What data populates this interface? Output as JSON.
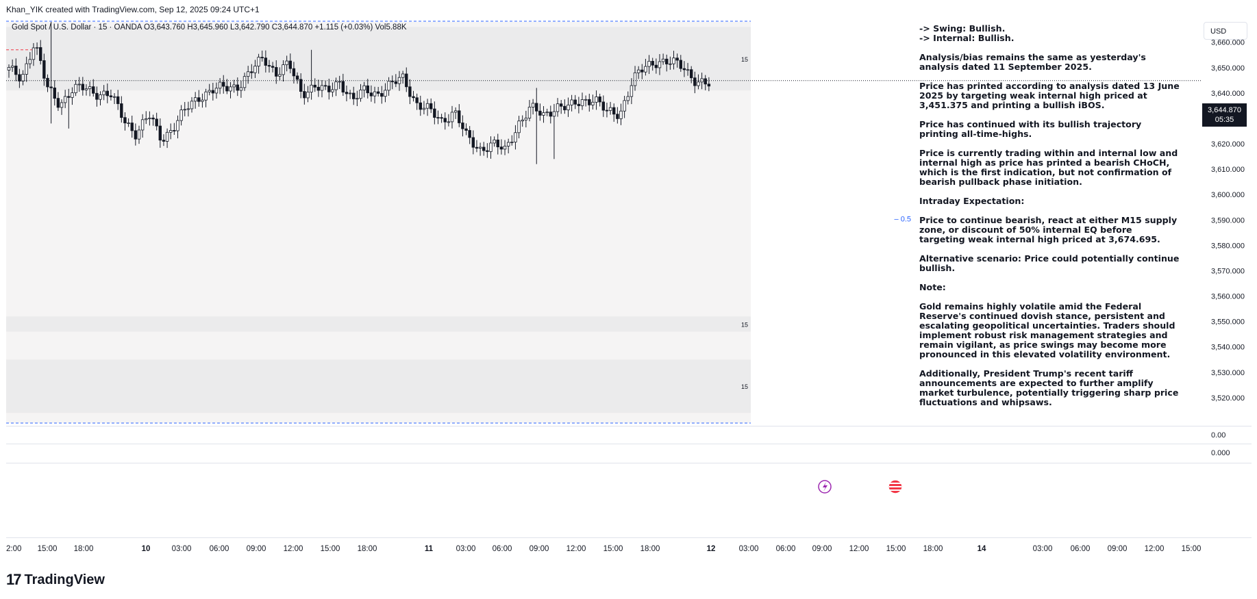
{
  "header": {
    "attribution": "Khan_YIK created with TradingView.com, Sep 12, 2025 09:24 UTC+1"
  },
  "legend": {
    "symbol": "Gold Spot / U.S. Dollar · 15 · OANDA",
    "open": "O3,643.760",
    "high": "H3,645.960",
    "low": "L3,642.790",
    "close": "C3,644.870",
    "change": "+1.115 (+0.03%)",
    "volume": "Vol5.88K"
  },
  "currency_button": "USD",
  "last_price": {
    "price": "3,644.870",
    "countdown": "05:35"
  },
  "fib_level_label": "0.5",
  "zone_labels": [
    "15",
    "15",
    "15"
  ],
  "sub_pane_values": [
    "0.00",
    "0.000"
  ],
  "notes": [
    "-> Swing: Bullish.",
    "-> Internal: Bullish.",
    "Analysis/bias remains the same as yesterday's analysis dated 11 September 2025.",
    "Price has printed according to analysis dated 13 June 2025 by targeting weak internal high priced at 3,451.375 and printing a bullish iBOS.",
    "Price has continued with its bullish trajectory printing all-time-highs.",
    "Price is currently trading within and internal low and internal high as price has printed a bearish CHoCH, which is the first indication, but not confirmation of bearish pullback phase initiation.",
    "Intraday Expectation:",
    "Price to continue bearish, react at either  M15 supply zone, or discount of 50% internal EQ before targeting weak internal high priced at 3,674.695.",
    "Alternative scenario: Price could potentially continue bullish.",
    "Note:",
    "Gold remains highly volatile amid the Federal Reserve's continued dovish stance, persistent and escalating geopolitical uncertainties. Traders should implement robust risk management strategies and remain vigilant, as price swings may become more pronounced in this elevated volatility environment.",
    "Additionally, President Trump's recent tariff announcements are expected to further amplify market turbulence, potentially triggering sharp price fluctuations and whipsaws."
  ],
  "footer": {
    "brand": "TradingView",
    "mark": "17"
  },
  "colors": {
    "up": "#ffffff",
    "down": "#131722",
    "zone": "#ebebec",
    "pane": "#f5f4f4",
    "fib": "#2962ff"
  },
  "chart_data": {
    "type": "candlestick",
    "ylim": [
      3510,
      3668
    ],
    "y_ticks": [
      3660,
      3650,
      3640,
      3630,
      3620,
      3610,
      3600,
      3590,
      3580,
      3570,
      3560,
      3550,
      3540,
      3530,
      3520
    ],
    "y_tick_labels": [
      "3,660.000",
      "3,650.000",
      "3,640.000",
      "3,630.000",
      "3,620.000",
      "3,610.000",
      "3,600.000",
      "3,590.000",
      "3,580.000",
      "3,570.000",
      "3,560.000",
      "3,550.000",
      "3,540.000",
      "3,530.000",
      "3,520.000"
    ],
    "x_tick_labels": [
      "2:00",
      "15:00",
      "18:00",
      "10",
      "03:00",
      "06:00",
      "09:00",
      "12:00",
      "15:00",
      "18:00",
      "11",
      "03:00",
      "06:00",
      "09:00",
      "12:00",
      "15:00",
      "18:00",
      "12",
      "03:00",
      "06:00",
      "09:00",
      "12:00",
      "15:00",
      "18:00",
      "14",
      "03:00",
      "06:00",
      "09:00",
      "12:00",
      "15:00"
    ],
    "last_price": 3644.87,
    "zones": [
      {
        "top": 3666,
        "bottom": 3641
      },
      {
        "top": 3552,
        "bottom": 3546
      },
      {
        "top": 3535,
        "bottom": 3514
      }
    ],
    "anchors": [
      [
        3649,
        3652
      ],
      [
        3646,
        3654
      ],
      [
        3660,
        3664
      ],
      [
        3642,
        3646
      ],
      [
        3636,
        3650
      ],
      [
        3641,
        3645
      ],
      [
        3642,
        3646
      ],
      [
        3640,
        3642
      ],
      [
        3639,
        3639
      ],
      [
        3630,
        3632
      ],
      [
        3624,
        3628
      ],
      [
        3631,
        3636
      ],
      [
        3622,
        3624
      ],
      [
        3627,
        3630
      ],
      [
        3634,
        3636
      ],
      [
        3639,
        3642
      ],
      [
        3641,
        3644
      ],
      [
        3642,
        3646
      ],
      [
        3643,
        3645
      ],
      [
        3648,
        3653
      ],
      [
        3654,
        3656
      ],
      [
        3648,
        3651
      ],
      [
        3651,
        3654
      ],
      [
        3640,
        3646
      ],
      [
        3643,
        3646
      ],
      [
        3640,
        3640
      ],
      [
        3645,
        3648
      ],
      [
        3637,
        3641
      ],
      [
        3641,
        3643
      ],
      [
        3640,
        3641
      ],
      [
        3643,
        3647
      ],
      [
        3646,
        3649
      ],
      [
        3636,
        3640
      ],
      [
        3633,
        3635
      ],
      [
        3629,
        3632
      ],
      [
        3633,
        3638
      ],
      [
        3622,
        3628
      ],
      [
        3618,
        3624
      ],
      [
        3620,
        3622
      ],
      [
        3617,
        3620
      ],
      [
        3628,
        3632
      ],
      [
        3634,
        3636
      ],
      [
        3631,
        3634
      ],
      [
        3635,
        3637
      ],
      [
        3634,
        3636
      ],
      [
        3637,
        3639
      ],
      [
        3638,
        3640
      ],
      [
        3632,
        3636
      ],
      [
        3632,
        3636
      ],
      [
        3645,
        3648
      ],
      [
        3650,
        3653
      ],
      [
        3653,
        3655
      ],
      [
        3652,
        3656
      ],
      [
        3650,
        3650
      ],
      [
        3645,
        3647
      ],
      [
        3643,
        3644
      ]
    ]
  }
}
